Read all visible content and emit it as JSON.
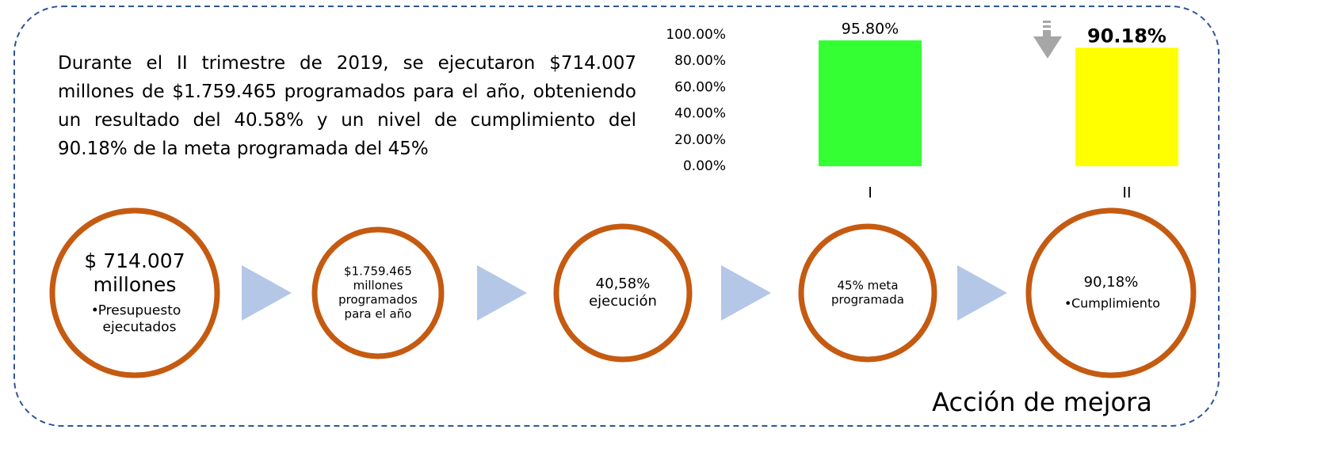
{
  "paragraph": "Durante el II trimestre de 2019, se ejecutaron $714.007 millones de $1.759.465 programados para el año, obteniendo un resultado del 40.58% y un nivel de cumplimiento del 90.18% de la meta programada del 45%",
  "chart_data": {
    "type": "bar",
    "categories": [
      "I",
      "II"
    ],
    "values": [
      95.8,
      90.18
    ],
    "value_labels": [
      "95.80%",
      "90.18%"
    ],
    "colors": [
      "#33ff33",
      "#ffff00"
    ],
    "ylim": [
      0,
      100
    ],
    "yticks": [
      {
        "value": 0,
        "label": "0.00%"
      },
      {
        "value": 20,
        "label": "20.00%"
      },
      {
        "value": 40,
        "label": "40.00%"
      },
      {
        "value": 60,
        "label": "60.00%"
      },
      {
        "value": 80,
        "label": "80.00%"
      },
      {
        "value": 100,
        "label": "100.00%"
      }
    ],
    "grid": false
  },
  "steps": [
    {
      "title": [
        "$ 714.007",
        "millones"
      ],
      "bullet": [
        "Presupuesto",
        "ejecutados"
      ]
    },
    {
      "title": [
        "$1.759.465",
        "millones",
        "programados",
        "para el año"
      ]
    },
    {
      "title": [
        "40,58%",
        "ejecución"
      ]
    },
    {
      "title": [
        "45% meta",
        "programada"
      ]
    },
    {
      "title": [
        "90,18%"
      ],
      "bullet": [
        "Cumplimiento"
      ]
    }
  ],
  "footer": "Acción de mejora"
}
